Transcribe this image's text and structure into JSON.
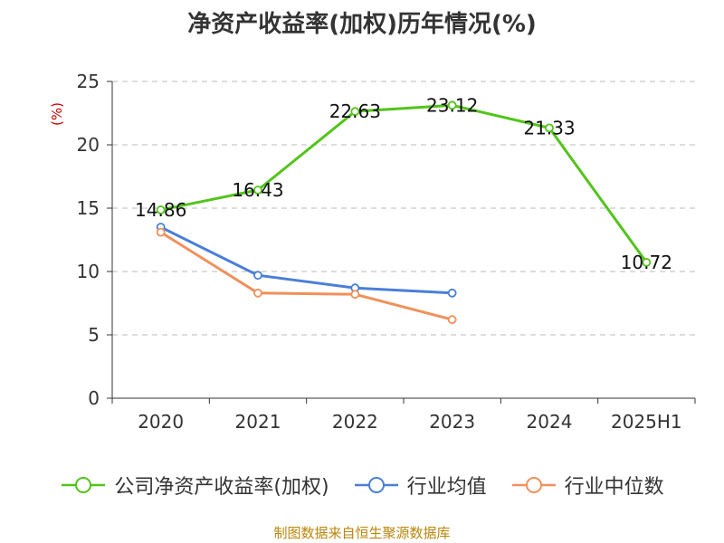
{
  "title": "净资产收益率(加权)历年情况(%)",
  "source": "制图数据来自恒生聚源数据库",
  "chart_data": {
    "type": "line",
    "title": "净资产收益率(加权)历年情况(%)",
    "ylabel": "(%)",
    "categories": [
      "2020",
      "2021",
      "2022",
      "2023",
      "2024",
      "2025H1"
    ],
    "ylim": [
      0,
      25
    ],
    "yticks": [
      0,
      5,
      10,
      15,
      20,
      25
    ],
    "grid": true,
    "legend_position": "bottom",
    "series": [
      {
        "name": "公司净资产收益率(加权)",
        "color": "#52c41a",
        "values": [
          14.86,
          16.43,
          22.63,
          23.12,
          21.33,
          10.72
        ],
        "labels": [
          "14.86",
          "16.43",
          "22.63",
          "23.12",
          "21.33",
          "10.72"
        ]
      },
      {
        "name": "行业均值",
        "color": "#4a7fd8",
        "values": [
          13.5,
          9.7,
          8.7,
          8.3,
          null,
          null
        ]
      },
      {
        "name": "行业中位数",
        "color": "#f0905a",
        "values": [
          13.1,
          8.3,
          8.2,
          6.2,
          null,
          null
        ]
      }
    ]
  }
}
